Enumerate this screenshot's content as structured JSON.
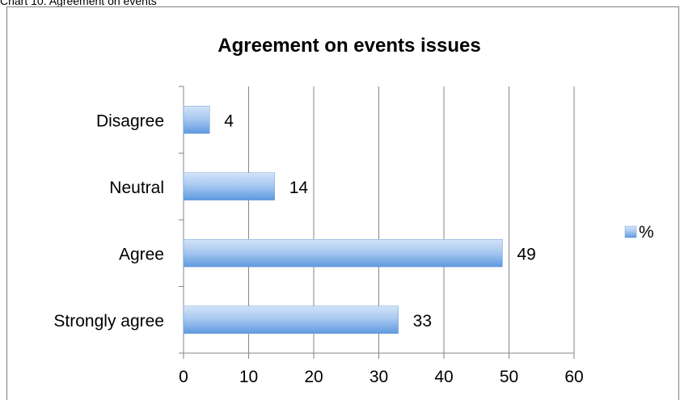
{
  "caption": "Chart 10: Agreement on events",
  "chart_data": {
    "type": "bar",
    "orientation": "horizontal",
    "title": "Agreement on events issues",
    "categories": [
      "Strongly agree",
      "Agree",
      "Neutral",
      "Disagree"
    ],
    "series": [
      {
        "name": "%",
        "values": [
          33,
          49,
          14,
          4
        ]
      }
    ],
    "xlim": [
      0,
      60
    ],
    "x_ticks": [
      0,
      10,
      20,
      30,
      40,
      50,
      60
    ],
    "grid": true,
    "legend_position": "right",
    "data_labels": true,
    "colors": {
      "bar_light": "#bcd6f5",
      "bar_dark": "#5b97e0",
      "grid": "#868686"
    }
  }
}
